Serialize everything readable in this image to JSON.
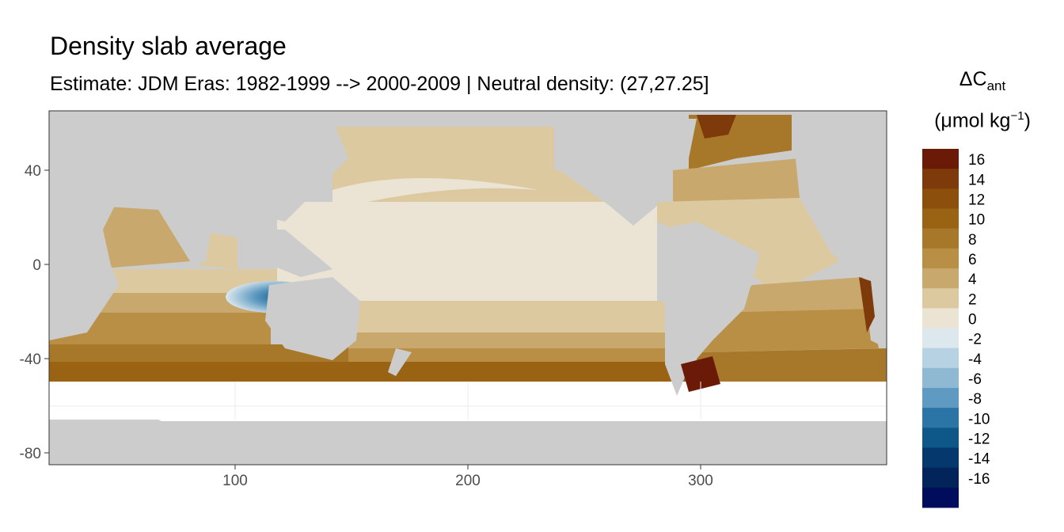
{
  "title": "Density slab average",
  "subtitle": "Estimate: JDM Eras: 1982-1999 --> 2000-2009 | Neutral density: (27,27.25]",
  "legend": {
    "title_main": "ΔC",
    "title_sub": "ant",
    "unit_open": "(μmol kg",
    "unit_exp": "−1",
    "unit_close": ")",
    "bins": [
      {
        "label": "16",
        "color": "#6b1a08"
      },
      {
        "label": "14",
        "color": "#7e3a0a"
      },
      {
        "label": "12",
        "color": "#8c4f0c"
      },
      {
        "label": "10",
        "color": "#9a6314"
      },
      {
        "label": "8",
        "color": "#a8782a"
      },
      {
        "label": "6",
        "color": "#b98f45"
      },
      {
        "label": "4",
        "color": "#c9a86d"
      },
      {
        "label": "2",
        "color": "#dcc9a0"
      },
      {
        "label": "0",
        "color": "#ebe3d4"
      },
      {
        "label": "-2",
        "color": "#dce8ee"
      },
      {
        "label": "-4",
        "color": "#b7d2e2"
      },
      {
        "label": "-6",
        "color": "#8fb9d3"
      },
      {
        "label": "-8",
        "color": "#5e9ac1"
      },
      {
        "label": "-10",
        "color": "#2b74a6"
      },
      {
        "label": "-12",
        "color": "#0d5789"
      },
      {
        "label": "-14",
        "color": "#05396d"
      },
      {
        "label": "-16",
        "color": "#03245a"
      },
      {
        "label": "",
        "color": "#000d5c"
      }
    ]
  },
  "axes": {
    "x_ticks": [
      "100",
      "200",
      "300"
    ],
    "y_ticks": [
      "40",
      "0",
      "-40",
      "-80"
    ]
  },
  "colors": {
    "land": "#cccccc",
    "nodata": "#ffffff",
    "grid": "#ebebeb",
    "border": "#333333"
  }
}
